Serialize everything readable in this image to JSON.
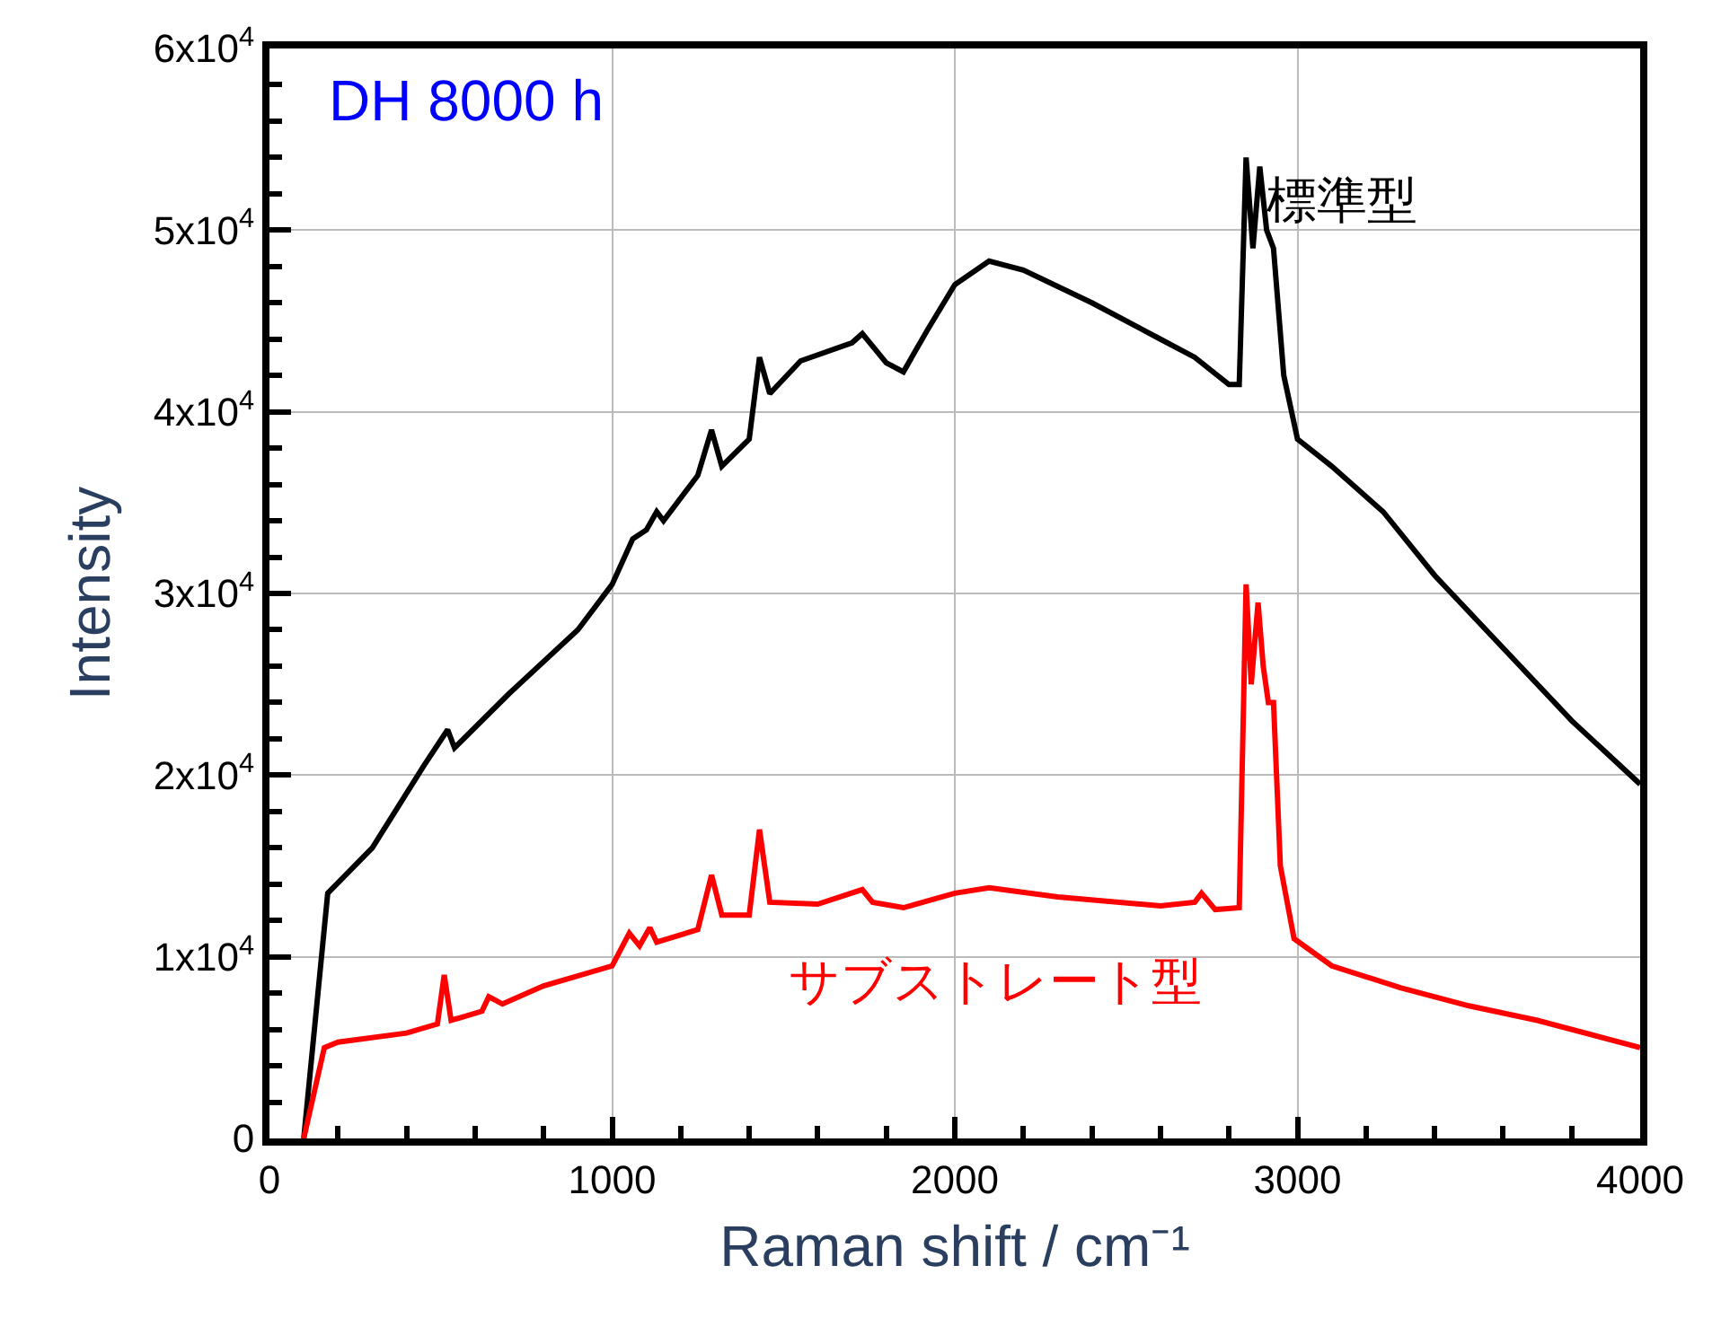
{
  "chart_data": {
    "type": "line",
    "xlabel": "Raman shift / cm⁻¹",
    "ylabel": "Intensity",
    "annotations": [
      "DH 8000 h"
    ],
    "xlim": [
      0,
      4000
    ],
    "xticks": [
      0,
      1000,
      2000,
      3000,
      4000
    ],
    "ylim": [
      0,
      60000
    ],
    "yticks": [
      {
        "value": 0,
        "label": "0"
      },
      {
        "value": 10000,
        "label": "1x10$^{4}$"
      },
      {
        "value": 20000,
        "label": "2x10$^{4}$"
      },
      {
        "value": 30000,
        "label": "3x10$^{4}$"
      },
      {
        "value": 40000,
        "label": "4x10$^{4}$"
      },
      {
        "value": 50000,
        "label": "5x10$^{4}$"
      },
      {
        "value": 60000,
        "label": "6x10$^{4}$"
      }
    ],
    "grid": true,
    "legend": false,
    "marker": "none",
    "line_style": "solid",
    "series": [
      {
        "name": "標準型",
        "color": "#000000",
        "x": [
          100,
          170,
          300,
          450,
          520,
          540,
          700,
          900,
          1000,
          1060,
          1100,
          1130,
          1150,
          1250,
          1290,
          1320,
          1400,
          1430,
          1460,
          1550,
          1700,
          1730,
          1800,
          1850,
          1920,
          2000,
          2100,
          2200,
          2400,
          2600,
          2700,
          2800,
          2830,
          2850,
          2870,
          2890,
          2910,
          2930,
          2960,
          3000,
          3100,
          3250,
          3400,
          3600,
          3800,
          4000
        ],
        "values": [
          0,
          13500,
          16000,
          20500,
          22500,
          21500,
          24500,
          28000,
          30500,
          33000,
          33500,
          34500,
          34000,
          36500,
          39000,
          37000,
          38500,
          43000,
          41000,
          42800,
          43800,
          44300,
          42700,
          42200,
          44500,
          47000,
          48300,
          47800,
          46000,
          44000,
          43000,
          41500,
          41500,
          54000,
          49000,
          53500,
          50000,
          49000,
          42000,
          38500,
          37000,
          34500,
          31000,
          27000,
          23000,
          19500
        ]
      },
      {
        "name": "サブストレート型",
        "color": "#ff0000",
        "x": [
          100,
          160,
          200,
          400,
          490,
          510,
          530,
          620,
          640,
          680,
          800,
          1000,
          1050,
          1080,
          1110,
          1130,
          1250,
          1290,
          1320,
          1400,
          1430,
          1460,
          1600,
          1730,
          1760,
          1850,
          2000,
          2100,
          2300,
          2600,
          2700,
          2720,
          2760,
          2830,
          2850,
          2865,
          2885,
          2900,
          2915,
          2930,
          2950,
          2990,
          3100,
          3300,
          3500,
          3700,
          4000
        ],
        "values": [
          0,
          5000,
          5300,
          5800,
          6300,
          9000,
          6500,
          7000,
          7800,
          7400,
          8400,
          9500,
          11300,
          10600,
          11600,
          10800,
          11500,
          14500,
          12300,
          12300,
          17000,
          13000,
          12900,
          13700,
          13000,
          12700,
          13500,
          13800,
          13300,
          12800,
          13000,
          13500,
          12600,
          12700,
          30500,
          25000,
          29500,
          26000,
          24000,
          24000,
          15000,
          11000,
          9500,
          8300,
          7300,
          6500,
          5000
        ]
      }
    ]
  }
}
